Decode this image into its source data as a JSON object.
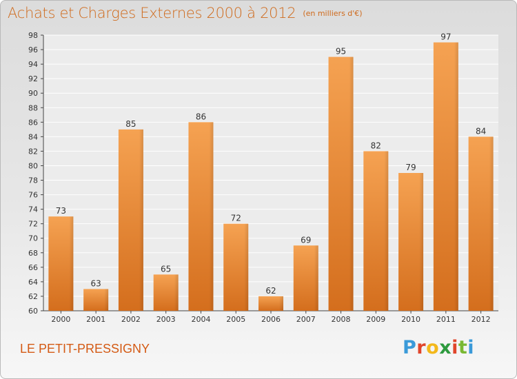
{
  "chart_data": {
    "type": "bar",
    "title": "Achats et Charges Externes 2000 à 2012",
    "subtitle": "(en milliers d'€)",
    "categories": [
      "2000",
      "2001",
      "2002",
      "2003",
      "2004",
      "2005",
      "2006",
      "2007",
      "2008",
      "2009",
      "2010",
      "2011",
      "2012"
    ],
    "values": [
      73,
      63,
      85,
      65,
      86,
      72,
      62,
      69,
      95,
      82,
      79,
      97,
      84
    ],
    "ylim": [
      60,
      98
    ],
    "yticks": [
      60,
      62,
      64,
      66,
      68,
      70,
      72,
      74,
      76,
      78,
      80,
      82,
      84,
      86,
      88,
      90,
      92,
      94,
      96,
      98
    ],
    "grid": true,
    "xlabel": "",
    "ylabel": "",
    "bar_color": "#f0903a"
  },
  "commune": "LE PETIT-PRESSIGNY",
  "logo": {
    "letters": [
      "P",
      "r",
      "o",
      "x",
      "i",
      "t",
      "i"
    ],
    "colors": [
      "#3a9ad9",
      "#e0452b",
      "#f3b81b",
      "#2d9a3e",
      "#e0452b",
      "#7ab833",
      "#3a9ad9"
    ]
  },
  "colors": {
    "title": "#cf6a1c",
    "commune": "#d45a14"
  }
}
